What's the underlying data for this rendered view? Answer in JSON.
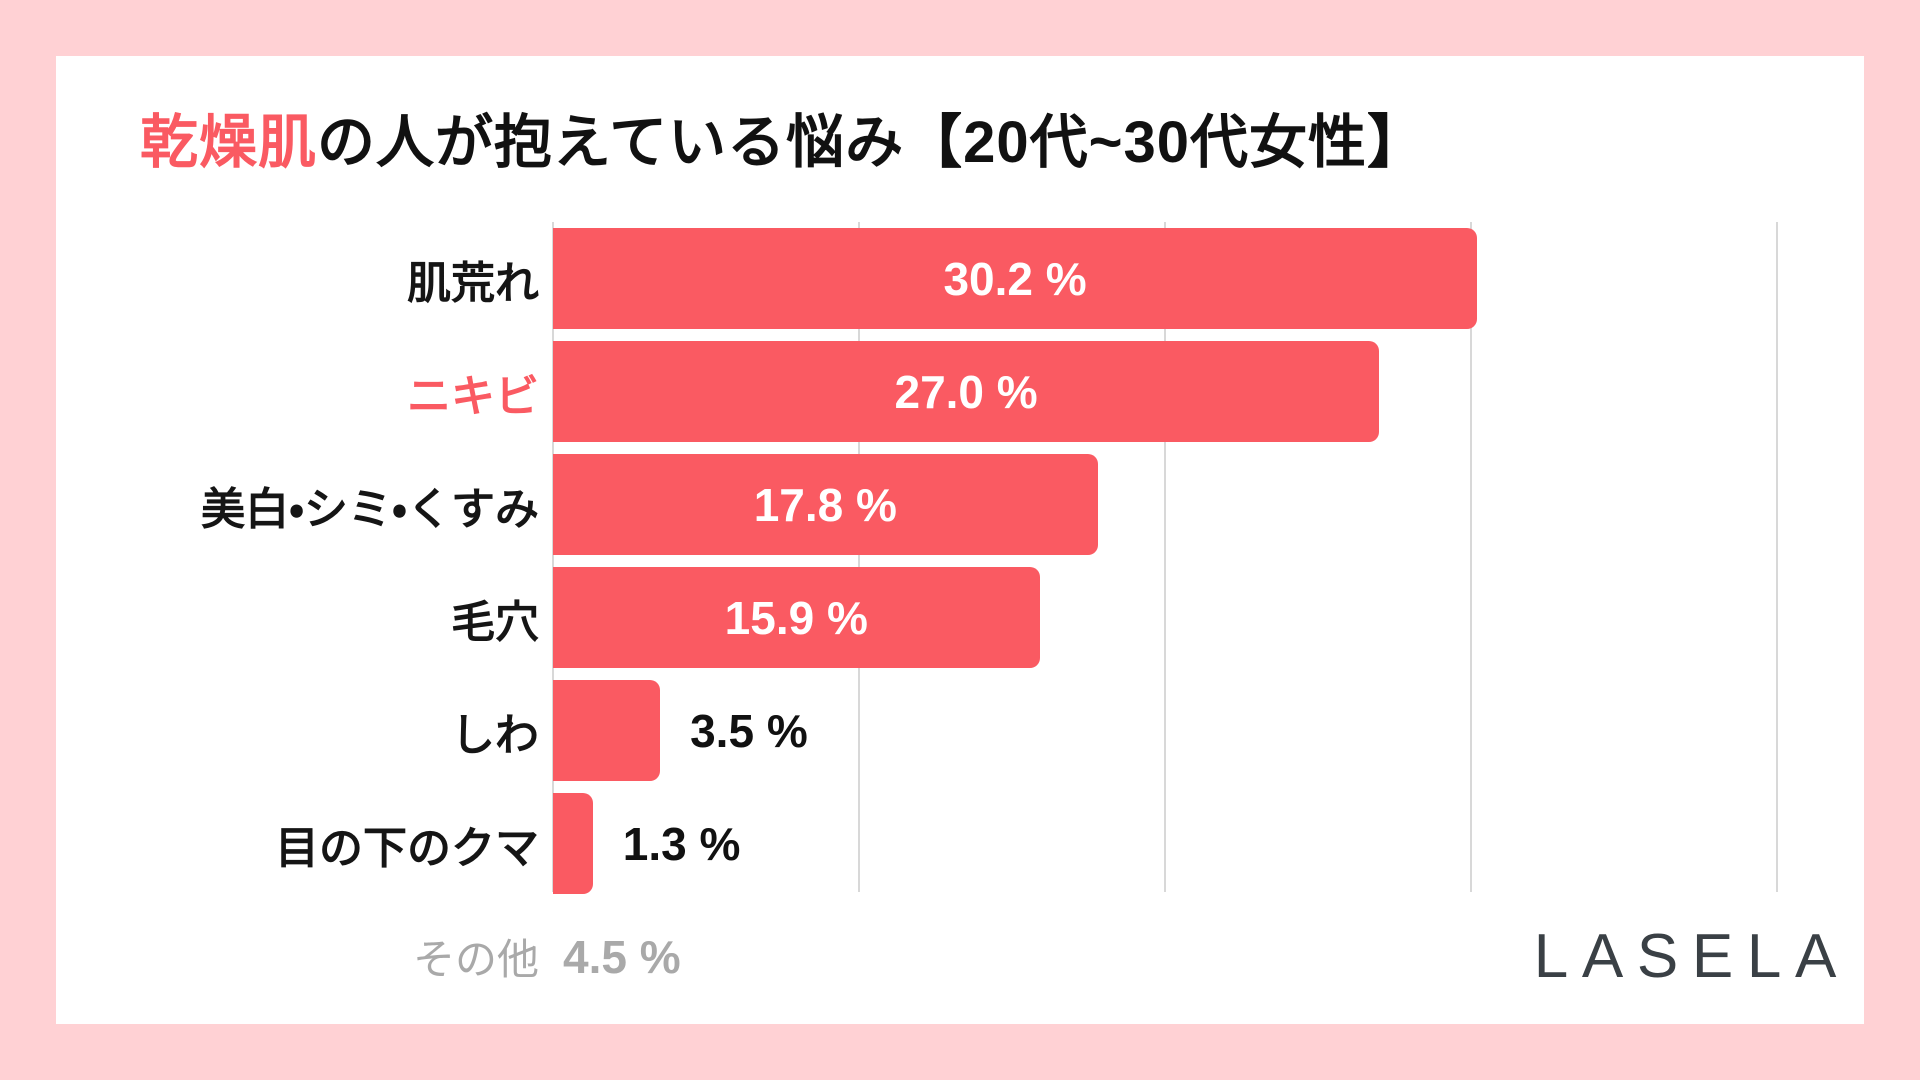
{
  "frame": {
    "background_color": "#FFD1D4",
    "card_background_color": "#FFFFFF"
  },
  "title": {
    "highlight": "乾燥肌",
    "rest": "の人が抱えている悩み【20代~30代女性】",
    "highlight_color": "#FA5A62",
    "text_color": "#111111"
  },
  "brand": {
    "logo_text": "LASELA",
    "color": "#3A4045"
  },
  "chart_data": {
    "type": "bar",
    "orientation": "horizontal",
    "title": "乾燥肌の人が抱えている悩み【20代~30代女性】",
    "unit": "%",
    "xlim": [
      0,
      40
    ],
    "gridlines": [
      0,
      10,
      20,
      30,
      40
    ],
    "grid_on": true,
    "grid_color": "#D8D8D8",
    "bar_color": "#FA5A62",
    "categories": [
      "肌荒れ",
      "ニキビ",
      "美白・シミ・くすみ",
      "毛穴",
      "しわ",
      "目の下のクマ",
      "その他"
    ],
    "values": [
      30.2,
      27.0,
      17.8,
      15.9,
      3.5,
      1.3,
      4.5
    ],
    "rows": [
      {
        "label": "肌荒れ",
        "label_color": "#151515",
        "value": 30.2,
        "value_label": "30.2 %",
        "value_color": "#FFFFFF",
        "bar_color": "#FA5A62",
        "width_css": "75.5%"
      },
      {
        "label": "ニキビ",
        "label_color": "#FA5A62",
        "value": 27.0,
        "value_label": "27.0 %",
        "value_color": "#FFFFFF",
        "bar_color": "#FA5A62",
        "width_css": "67.5%"
      },
      {
        "label": "美白・シミ・くすみ",
        "label_color": "#151515",
        "value": 17.8,
        "value_label": "17.8 %",
        "value_color": "#FFFFFF",
        "bar_color": "#FA5A62",
        "width_css": "44.5%"
      },
      {
        "label": "毛穴",
        "label_color": "#151515",
        "value": 15.9,
        "value_label": "15.9 %",
        "value_color": "#FFFFFF",
        "bar_color": "#FA5A62",
        "width_css": "39.75%"
      },
      {
        "label": "しわ",
        "label_color": "#151515",
        "value": 3.5,
        "value_label": "3.5 %",
        "value_color": "#111111",
        "bar_color": "#FA5A62",
        "width_css": "8.75%"
      },
      {
        "label": "目の下のクマ",
        "label_color": "#151515",
        "value": 1.3,
        "value_label": "1.3 %",
        "value_color": "#111111",
        "bar_color": "#FA5A62",
        "width_css": "3.25%"
      },
      {
        "label": "その他",
        "label_color": "#A9A9A9",
        "value": 4.5,
        "value_label": "4.5 %",
        "value_color": "#A9A9A9",
        "bar_color": "transparent",
        "width_css": "11.25%"
      }
    ]
  }
}
